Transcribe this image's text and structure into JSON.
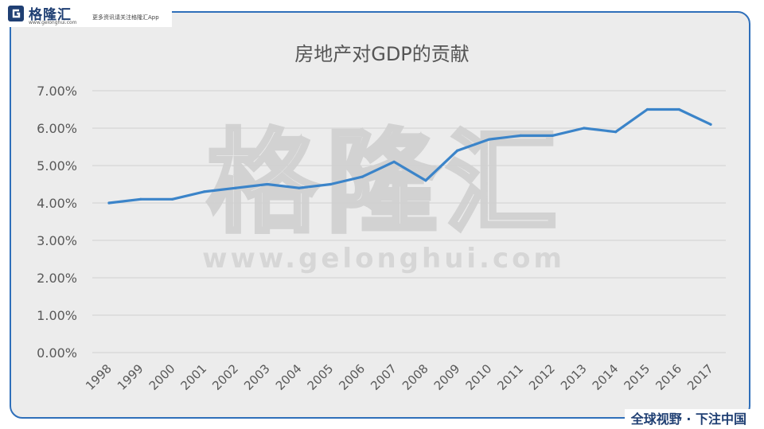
{
  "brand": {
    "name": "格隆汇",
    "url": "www.gelonghui.com",
    "slogan": "更多资讯请关注格隆汇App",
    "footer": "全球视野 · 下注中国",
    "watermark_cn": "格隆汇",
    "watermark_url": "www.gelonghui.com",
    "accent_color": "#2f6fba",
    "text_color": "#1f3f73"
  },
  "chart_data": {
    "type": "line",
    "title": "房地产对GDP的贡献",
    "xlabel": "",
    "ylabel": "",
    "categories": [
      "1998",
      "1999",
      "2000",
      "2001",
      "2002",
      "2003",
      "2004",
      "2005",
      "2006",
      "2007",
      "2008",
      "2009",
      "2010",
      "2011",
      "2012",
      "2013",
      "2014",
      "2015",
      "2016",
      "2017"
    ],
    "series": [
      {
        "values": [
          4.0,
          4.1,
          4.1,
          4.3,
          4.4,
          4.5,
          4.4,
          4.5,
          4.7,
          5.1,
          4.6,
          5.4,
          5.7,
          5.8,
          5.8,
          6.0,
          5.9,
          6.5,
          6.5,
          6.1
        ],
        "color": "#3b84c9"
      }
    ],
    "yticks": [
      "0.00%",
      "1.00%",
      "2.00%",
      "3.00%",
      "4.00%",
      "5.00%",
      "6.00%",
      "7.00%"
    ],
    "ylim": [
      0,
      7
    ],
    "grid": true,
    "legend": "none"
  }
}
